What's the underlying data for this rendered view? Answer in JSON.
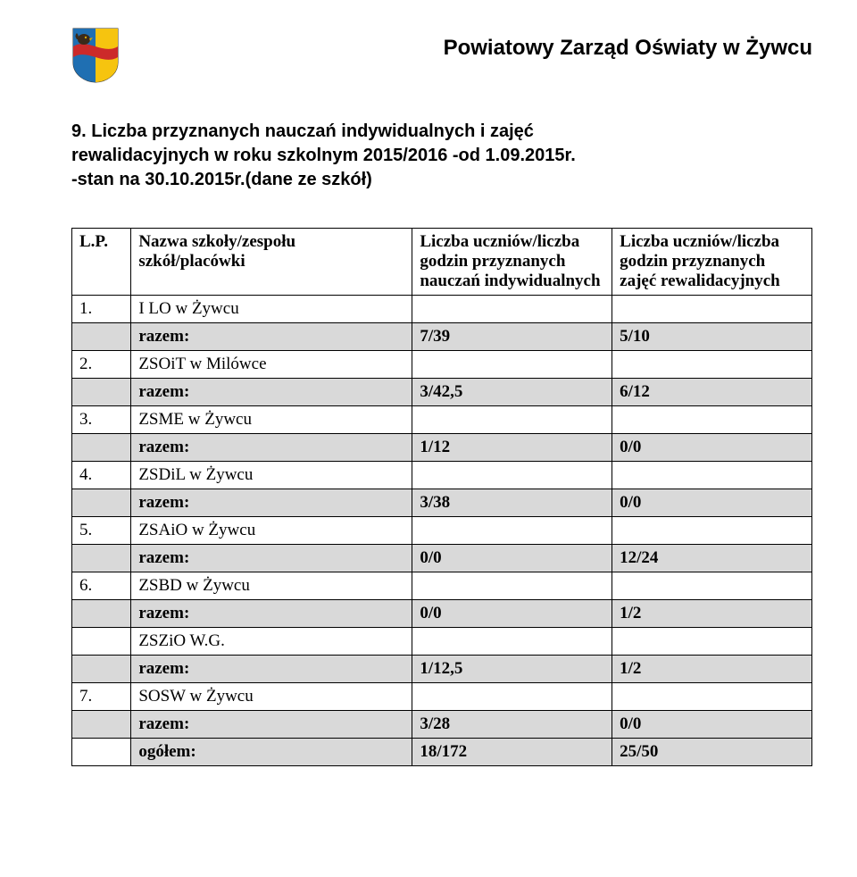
{
  "colors": {
    "page_bg": "#ffffff",
    "text": "#000000",
    "table_border": "#000000",
    "sum_row_bg": "#d9d9d9",
    "crest_left": "#1f6fb2",
    "crest_right": "#f6c40f",
    "crest_band": "#cc2a2a",
    "eagle_body": "#3a2a1a",
    "eagle_beak": "#d9a400"
  },
  "header": {
    "org_title": "Powiatowy Zarząd Oświaty w Żywcu"
  },
  "section": {
    "heading_line1": "9. Liczba przyznanych nauczań indywidualnych  i zajęć",
    "heading_line2": "rewalidacyjnych w roku szkolnym 2015/2016 -od 1.09.2015r.",
    "heading_line3": "-stan na 30.10.2015r.(dane ze szkół)"
  },
  "table": {
    "headers": {
      "lp": "L.P.",
      "name": "Nazwa szkoły/zespołu szkół/placówki",
      "col_a": "Liczba uczniów/liczba godzin przyznanych nauczań indywidualnych",
      "col_b": "Liczba uczniów/liczba godzin przyznanych zajęć rewalidacyjnych"
    },
    "groups": [
      {
        "lp": "1.",
        "name": "I LO w Żywcu",
        "sum_label": "razem:",
        "a": "7/39",
        "b": "5/10"
      },
      {
        "lp": "2.",
        "name": "ZSOiT w Milówce",
        "sum_label": "razem:",
        "a": "3/42,5",
        "b": "6/12"
      },
      {
        "lp": "3.",
        "name": "ZSME w Żywcu",
        "sum_label": "razem:",
        "a": "1/12",
        "b": "0/0"
      },
      {
        "lp": "4.",
        "name": "ZSDiL w Żywcu",
        "sum_label": "razem:",
        "a": "3/38",
        "b": "0/0"
      },
      {
        "lp": "5.",
        "name": "ZSAiO w Żywcu",
        "sum_label": "razem:",
        "a": "0/0",
        "b": "12/24"
      },
      {
        "lp": "6.",
        "name": "ZSBD w Żywcu",
        "sum_label": "razem:",
        "a": "0/0",
        "b": "1/2"
      },
      {
        "lp": "",
        "name": "ZSZiO W.G.",
        "sum_label": "razem:",
        "a": "1/12,5",
        "b": "1/2"
      },
      {
        "lp": "7.",
        "name": "SOSW w Żywcu",
        "sum_label": "razem:",
        "a": "3/28",
        "b": "0/0"
      }
    ],
    "total": {
      "label": "ogółem:",
      "a": "18/172",
      "b": "25/50"
    }
  }
}
